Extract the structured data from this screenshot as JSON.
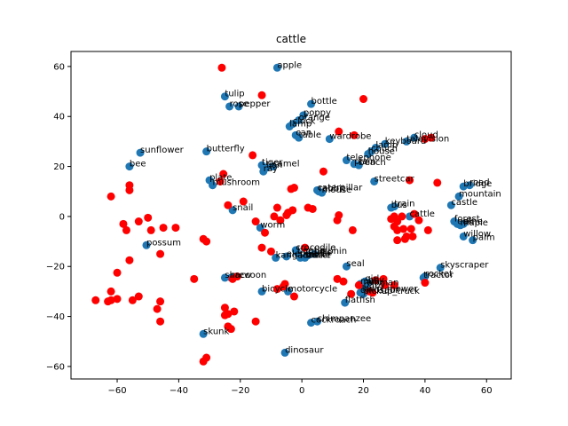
{
  "chart_data": {
    "type": "scatter",
    "title": "cattle",
    "xlabel": "",
    "ylabel": "",
    "xlim": [
      -75,
      68
    ],
    "ylim": [
      -65,
      66
    ],
    "x_ticks": [
      -60,
      -40,
      -20,
      0,
      20,
      40,
      60
    ],
    "y_ticks": [
      -60,
      -40,
      -20,
      0,
      20,
      40,
      60
    ],
    "grid": false,
    "colors": {
      "labeled": "#1f77b4",
      "unlabeled": "#ff0000",
      "axes": "#000000"
    },
    "labeled_points": [
      {
        "label": "apple",
        "x": -8,
        "y": 59.5
      },
      {
        "label": "tulip",
        "x": -25,
        "y": 48
      },
      {
        "label": "rose",
        "x": -23.5,
        "y": 44
      },
      {
        "label": "pepper",
        "x": -20.5,
        "y": 44
      },
      {
        "label": "bottle",
        "x": 3,
        "y": 45
      },
      {
        "label": "poppy",
        "x": 0.5,
        "y": 40.5
      },
      {
        "label": "orange",
        "x": -1,
        "y": 38.5
      },
      {
        "label": "clock",
        "x": -3,
        "y": 37
      },
      {
        "label": "lamp",
        "x": -4,
        "y": 36
      },
      {
        "label": "can",
        "x": -2,
        "y": 32.5
      },
      {
        "label": "table",
        "x": -1,
        "y": 31.5
      },
      {
        "label": "wardrobe",
        "x": 9,
        "y": 31
      },
      {
        "label": "cloud",
        "x": 36.5,
        "y": 31.5
      },
      {
        "label": "television",
        "x": 34,
        "y": 30
      },
      {
        "label": "keyboard",
        "x": 27,
        "y": 29
      },
      {
        "label": "lamb",
        "x": 24,
        "y": 27.5
      },
      {
        "label": "couch",
        "x": 22.5,
        "y": 26
      },
      {
        "label": "house",
        "x": 21.5,
        "y": 25
      },
      {
        "label": "telephone",
        "x": 14.5,
        "y": 22.5
      },
      {
        "label": "plain",
        "x": 17,
        "y": 21
      },
      {
        "label": "beach",
        "x": 18.5,
        "y": 20.5
      },
      {
        "label": "sunflower",
        "x": -52.5,
        "y": 25.5
      },
      {
        "label": "bee",
        "x": -56,
        "y": 20
      },
      {
        "label": "butterfly",
        "x": -31,
        "y": 26
      },
      {
        "label": "tiger",
        "x": -13,
        "y": 20.5
      },
      {
        "label": "camel",
        "x": -9.5,
        "y": 20
      },
      {
        "label": "lion",
        "x": -11.5,
        "y": 19.5
      },
      {
        "label": "ray",
        "x": -12.5,
        "y": 18
      },
      {
        "label": "plate",
        "x": -30,
        "y": 14.5
      },
      {
        "label": "mushroom",
        "x": -29,
        "y": 12.5
      },
      {
        "label": "caterpillar",
        "x": 5,
        "y": 10.5
      },
      {
        "label": "mouse",
        "x": 6.5,
        "y": 9.5
      },
      {
        "label": "rabbit",
        "x": 5.5,
        "y": 10
      },
      {
        "label": "streetcar",
        "x": 23.5,
        "y": 14
      },
      {
        "label": "bridge",
        "x": 52.5,
        "y": 12
      },
      {
        "label": "road",
        "x": 54.5,
        "y": 12.5
      },
      {
        "label": "mountain",
        "x": 51,
        "y": 8
      },
      {
        "label": "castle",
        "x": 48.5,
        "y": 4.5
      },
      {
        "label": "snail",
        "x": -22.5,
        "y": 2.5
      },
      {
        "label": "bus",
        "x": 29,
        "y": 3.5
      },
      {
        "label": "train",
        "x": 30,
        "y": 4
      },
      {
        "label": "cattle",
        "x": 35,
        "y": 0
      },
      {
        "label": "worm",
        "x": -13.5,
        "y": -4.5
      },
      {
        "label": "forest",
        "x": 49.5,
        "y": -2
      },
      {
        "label": "oak",
        "x": 50.5,
        "y": -3
      },
      {
        "label": "maple",
        "x": 51.5,
        "y": -3.5
      },
      {
        "label": "pine",
        "x": 52.5,
        "y": -3
      },
      {
        "label": "willow",
        "x": 52.5,
        "y": -8
      },
      {
        "label": "palm",
        "x": 55.5,
        "y": -9.5
      },
      {
        "label": "possum",
        "x": -50.5,
        "y": -11.5
      },
      {
        "label": "crocodile",
        "x": -2,
        "y": -13.5
      },
      {
        "label": "beetle",
        "x": -1.5,
        "y": -14.5
      },
      {
        "label": "turtle",
        "x": 2,
        "y": -15.5
      },
      {
        "label": "dolphin",
        "x": 4,
        "y": -15
      },
      {
        "label": "lobster",
        "x": -0.5,
        "y": -16.5
      },
      {
        "label": "snake",
        "x": 1,
        "y": -16.5
      },
      {
        "label": "kangaroo",
        "x": -8.5,
        "y": -16.5
      },
      {
        "label": "elephant",
        "x": -5,
        "y": -16
      },
      {
        "label": "seal",
        "x": 14.5,
        "y": -20
      },
      {
        "label": "skyscraper",
        "x": 45,
        "y": -20.5
      },
      {
        "label": "rocket",
        "x": 40,
        "y": -24
      },
      {
        "label": "tractor",
        "x": 39.5,
        "y": -24.5
      },
      {
        "label": "shrew",
        "x": -25,
        "y": -24.5
      },
      {
        "label": "raccoon",
        "x": -23,
        "y": -24.5
      },
      {
        "label": "girl",
        "x": 20.5,
        "y": -26
      },
      {
        "label": "boy",
        "x": 21.5,
        "y": -26.5
      },
      {
        "label": "man",
        "x": 19,
        "y": -27
      },
      {
        "label": "woman",
        "x": 21,
        "y": -27.5
      },
      {
        "label": "baby",
        "x": 20,
        "y": -28.5
      },
      {
        "label": "motorcycle",
        "x": -4.5,
        "y": -30
      },
      {
        "label": "bicycle",
        "x": -13,
        "y": -30
      },
      {
        "label": "dinosaur",
        "x": 19,
        "y": -30.5
      },
      {
        "label": "pickup_truck",
        "x": 20,
        "y": -31
      },
      {
        "label": "lawn_mower",
        "x": 19.5,
        "y": -30
      },
      {
        "label": "flatfish",
        "x": 14,
        "y": -34.5
      },
      {
        "label": "skunk",
        "x": -32,
        "y": -47
      },
      {
        "label": "chimpanzee",
        "x": 5,
        "y": -42
      },
      {
        "label": "cockroach",
        "x": 3,
        "y": -42.5
      },
      {
        "label": "dinosaur",
        "x": -5.5,
        "y": -54.5
      }
    ],
    "unlabeled_points": [
      [
        -26,
        59.5
      ],
      [
        -13,
        48.5
      ],
      [
        20,
        47
      ],
      [
        -16,
        24.5
      ],
      [
        12,
        34
      ],
      [
        17,
        32.5
      ],
      [
        42,
        31.5
      ],
      [
        40,
        31
      ],
      [
        -25.5,
        17
      ],
      [
        -26.5,
        14
      ],
      [
        7,
        18
      ],
      [
        35,
        14.5
      ],
      [
        44,
        13.5
      ],
      [
        -62,
        8
      ],
      [
        -56,
        12.5
      ],
      [
        -56,
        10.5
      ],
      [
        -19,
        6
      ],
      [
        -3.5,
        11
      ],
      [
        -2.5,
        11.5
      ],
      [
        -24,
        4.5
      ],
      [
        -8,
        3.5
      ],
      [
        -3,
        2.5
      ],
      [
        2,
        3.5
      ],
      [
        3.5,
        3
      ],
      [
        -4.5,
        1.5
      ],
      [
        -5,
        0.5
      ],
      [
        -50,
        -0.5
      ],
      [
        -58,
        -3
      ],
      [
        -53,
        -2
      ],
      [
        -45,
        -4.5
      ],
      [
        -41,
        -4.5
      ],
      [
        -57,
        -5.5
      ],
      [
        -49,
        -5.5
      ],
      [
        -32,
        -9
      ],
      [
        -31,
        -10
      ],
      [
        -15,
        -2
      ],
      [
        -12,
        -6.5
      ],
      [
        -7,
        -1.5
      ],
      [
        -9,
        0
      ],
      [
        12,
        0.5
      ],
      [
        11.5,
        -1.5
      ],
      [
        16.5,
        -5.5
      ],
      [
        29,
        -1
      ],
      [
        30,
        0
      ],
      [
        31,
        -2
      ],
      [
        32.5,
        0
      ],
      [
        30,
        -4
      ],
      [
        31,
        -5.5
      ],
      [
        33,
        -5
      ],
      [
        35.5,
        -5
      ],
      [
        36.5,
        1
      ],
      [
        38,
        -1.5
      ],
      [
        41,
        -5.5
      ],
      [
        33.5,
        -9
      ],
      [
        34,
        -8
      ],
      [
        36,
        -8
      ],
      [
        31,
        -9.5
      ],
      [
        -46,
        -15
      ],
      [
        -56,
        -17.5
      ],
      [
        -60,
        -22.5
      ],
      [
        -13,
        -12.5
      ],
      [
        -10,
        -14
      ],
      [
        1,
        -12.5
      ],
      [
        -35,
        -25
      ],
      [
        -22.5,
        -25
      ],
      [
        -21,
        -24
      ],
      [
        -5.5,
        -27
      ],
      [
        -6,
        -28
      ],
      [
        -8,
        -29
      ],
      [
        -2.5,
        -32
      ],
      [
        11.5,
        -25
      ],
      [
        13.5,
        -26
      ],
      [
        16,
        -31
      ],
      [
        22,
        -30
      ],
      [
        23,
        -30.5
      ],
      [
        18.5,
        -27.5
      ],
      [
        24,
        -25.5
      ],
      [
        27,
        -27.5
      ],
      [
        30,
        -27.5
      ],
      [
        26.5,
        -25
      ],
      [
        40,
        -26.5
      ],
      [
        -62,
        -30
      ],
      [
        -53,
        -32
      ],
      [
        -55,
        -33.5
      ],
      [
        -60,
        -33
      ],
      [
        -62,
        -33.5
      ],
      [
        -63,
        -34
      ],
      [
        -67,
        -33.5
      ],
      [
        -46,
        -34
      ],
      [
        -47,
        -37
      ],
      [
        -46,
        -42
      ],
      [
        -25,
        -36.5
      ],
      [
        -24,
        -39
      ],
      [
        -25,
        -39.5
      ],
      [
        -22,
        -38
      ],
      [
        -15,
        -42
      ],
      [
        -24,
        -44
      ],
      [
        -23,
        -45
      ],
      [
        -31,
        -56.5
      ],
      [
        -32,
        -58
      ]
    ]
  }
}
